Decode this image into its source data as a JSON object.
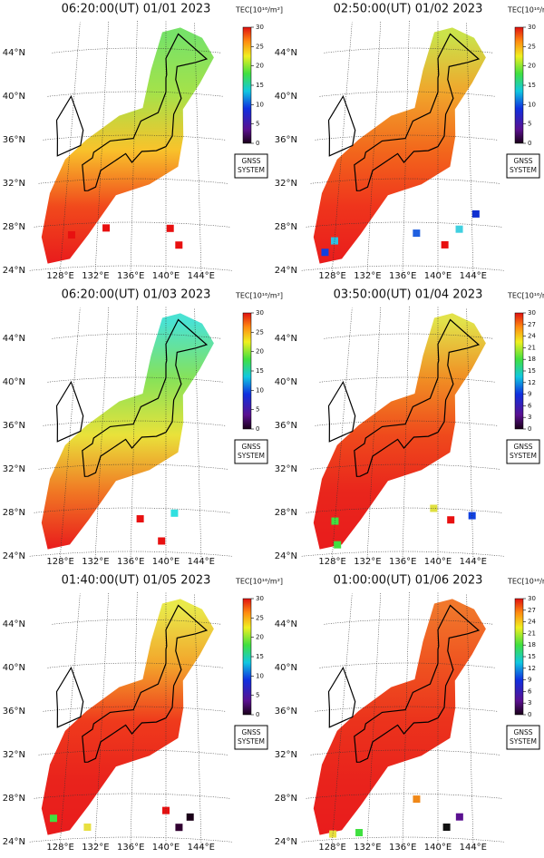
{
  "panels": [
    {
      "title": "06:20:00(UT) 01/01 2023",
      "colorbar": {
        "label": "TEC[10¹⁶/m²]",
        "ticks": [
          0,
          5,
          10,
          15,
          20,
          25,
          30
        ]
      }
    },
    {
      "title": "02:50:00(UT) 01/02 2023",
      "colorbar": {
        "label": "TEC[10¹⁶/m²]",
        "ticks": [
          0,
          5,
          10,
          15,
          20,
          25,
          30
        ]
      }
    },
    {
      "title": "06:20:00(UT) 01/03 2023",
      "colorbar": {
        "label": "TEC[10¹⁶/m²]",
        "ticks": [
          0,
          5,
          10,
          15,
          20,
          25,
          30
        ]
      }
    },
    {
      "title": "03:50:00(UT) 01/04 2023",
      "colorbar": {
        "label": "TEC[10¹⁶/m³]",
        "ticks": [
          0,
          3,
          6,
          9,
          12,
          15,
          18,
          21,
          24,
          27,
          30
        ]
      }
    },
    {
      "title": "01:40:00(UT) 01/05 2023",
      "colorbar": {
        "label": "TEC[10¹⁶/m²]",
        "ticks": [
          0,
          5,
          10,
          15,
          20,
          25,
          30
        ]
      }
    },
    {
      "title": "01:00:00(UT) 01/06 2023",
      "colorbar": {
        "label": "TEC[10¹⁶/m³]",
        "ticks": [
          0,
          3,
          6,
          9,
          12,
          15,
          18,
          21,
          24,
          27,
          30
        ]
      }
    }
  ],
  "lat_labels": [
    "24°N",
    "28°N",
    "32°N",
    "36°N",
    "40°N",
    "44°N"
  ],
  "lon_labels": [
    "128°E",
    "132°E",
    "136°E",
    "140°E",
    "144°E"
  ],
  "badge_lines": [
    "GNSS",
    "SYSTEM"
  ]
}
